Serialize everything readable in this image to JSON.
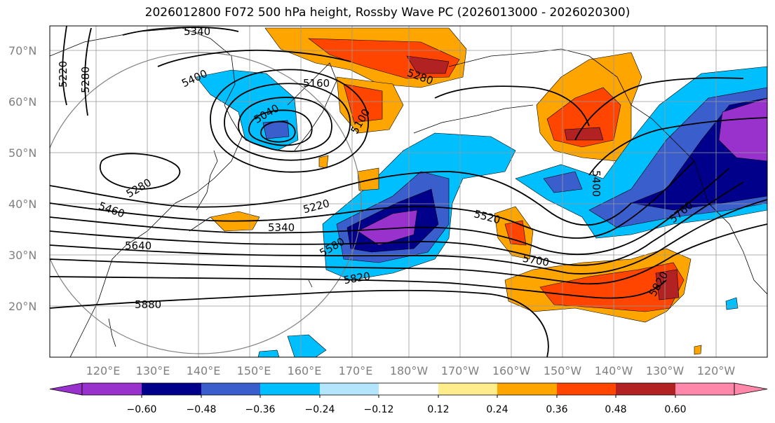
{
  "title": "2026012800 F072 500 hPa height, Rossby Wave PC (2026013000 - 2026020300)",
  "map": {
    "lat_labels": [
      "70°N",
      "60°N",
      "50°N",
      "40°N",
      "30°N",
      "20°N"
    ],
    "lon_labels": [
      "120°E",
      "130°E",
      "140°E",
      "150°E",
      "160°E",
      "170°E",
      "180°W",
      "170°W",
      "160°W",
      "150°W",
      "140°W",
      "130°W",
      "120°W"
    ],
    "height_contour_labels": [
      "5340",
      "5220",
      "5280",
      "5400",
      "5160",
      "5040",
      "5280",
      "5100",
      "5280",
      "5460",
      "5640",
      "5340",
      "5220",
      "5580",
      "5820",
      "5880",
      "5520",
      "5700",
      "5400",
      "5760",
      "5820"
    ]
  },
  "colorbar": {
    "colors": [
      "#9932cc",
      "#00008b",
      "#3a5fcd",
      "#00bfff",
      "#b3e5fc",
      "#ffffff",
      "#ffec8b",
      "#ffa500",
      "#ff4500",
      "#b22222",
      "#ff88aa"
    ],
    "tick_labels": [
      "−0.60",
      "−0.48",
      "−0.36",
      "−0.24",
      "−0.12",
      "0.12",
      "0.24",
      "0.36",
      "0.48",
      "0.60"
    ]
  }
}
